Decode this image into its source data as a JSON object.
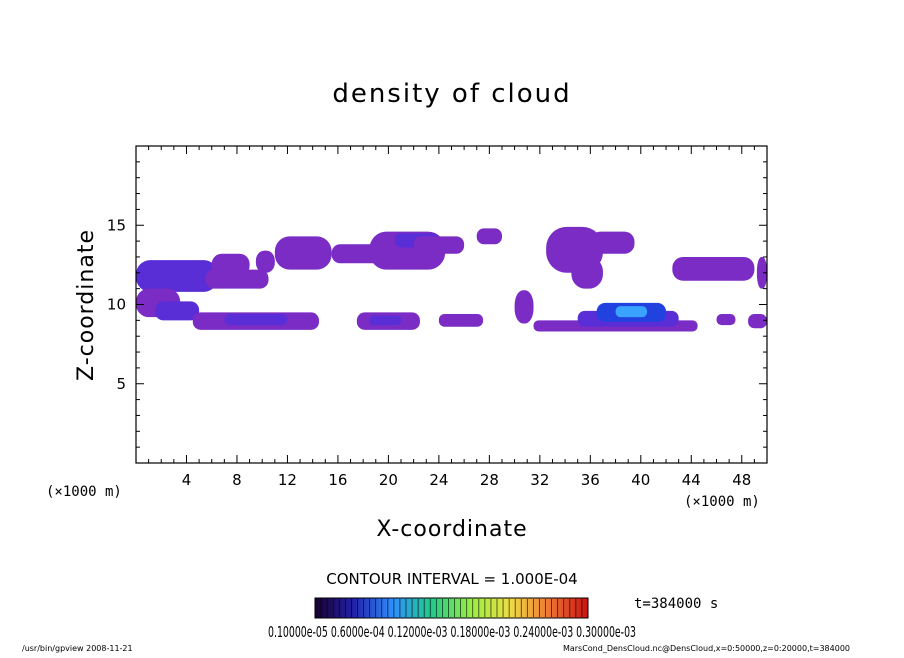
{
  "chart_data": {
    "type": "heatmap",
    "title": "density of cloud",
    "xlabel": "X-coordinate",
    "ylabel": "Z-coordinate",
    "x_unit_label": "(×1000 m)",
    "y_unit_label": "(×1000 m)",
    "xlim": [
      0,
      50
    ],
    "ylim": [
      0,
      20
    ],
    "x_ticks": [
      "4",
      "8",
      "12",
      "16",
      "20",
      "24",
      "28",
      "32",
      "36",
      "40",
      "44",
      "48"
    ],
    "y_ticks": [
      "5",
      "10",
      "15"
    ],
    "contour_interval_text": "CONTOUR INTERVAL = 1.000E-04",
    "time_text": "t=384000 s",
    "colorbar_labels_text": "0.10000e-05 0.6000e-04 0.12000e-03 0.18000e-03 0.24000e-03 0.30000e-03",
    "colorbar_stops": [
      "#1a0030",
      "#2222aa",
      "#2f8fff",
      "#22cc88",
      "#99ee44",
      "#eedd44",
      "#ee7733",
      "#cc1111"
    ],
    "cloud_levels": {
      "low": "#7b2cc4",
      "mid": "#5a2ed6",
      "high": "#2242e0",
      "peak": "#3aa3ff"
    },
    "regions": [
      {
        "x": [
          0.0,
          6.5
        ],
        "z": [
          10.8,
          12.8
        ],
        "level": "mid"
      },
      {
        "x": [
          0.0,
          3.5
        ],
        "z": [
          9.2,
          11.0
        ],
        "level": "low"
      },
      {
        "x": [
          1.5,
          5.0
        ],
        "z": [
          9.0,
          10.2
        ],
        "level": "mid"
      },
      {
        "x": [
          5.5,
          10.5
        ],
        "z": [
          11.0,
          12.2
        ],
        "level": "low"
      },
      {
        "x": [
          6.0,
          9.0
        ],
        "z": [
          11.8,
          13.2
        ],
        "level": "low"
      },
      {
        "x": [
          9.5,
          11.0
        ],
        "z": [
          12.0,
          13.4
        ],
        "level": "low"
      },
      {
        "x": [
          11.0,
          15.5
        ],
        "z": [
          12.2,
          14.3
        ],
        "level": "low"
      },
      {
        "x": [
          15.5,
          20.0
        ],
        "z": [
          12.6,
          13.8
        ],
        "level": "low"
      },
      {
        "x": [
          18.5,
          24.5
        ],
        "z": [
          12.2,
          14.6
        ],
        "level": "low"
      },
      {
        "x": [
          20.5,
          24.0
        ],
        "z": [
          13.6,
          14.5
        ],
        "level": "mid"
      },
      {
        "x": [
          22.0,
          26.0
        ],
        "z": [
          13.2,
          14.3
        ],
        "level": "low"
      },
      {
        "x": [
          27.0,
          29.0
        ],
        "z": [
          13.8,
          14.8
        ],
        "level": "low"
      },
      {
        "x": [
          4.5,
          14.5
        ],
        "z": [
          8.4,
          9.5
        ],
        "level": "low"
      },
      {
        "x": [
          7.0,
          12.0
        ],
        "z": [
          8.7,
          9.4
        ],
        "level": "mid"
      },
      {
        "x": [
          17.5,
          22.5
        ],
        "z": [
          8.4,
          9.5
        ],
        "level": "low"
      },
      {
        "x": [
          18.5,
          21.0
        ],
        "z": [
          8.7,
          9.3
        ],
        "level": "mid"
      },
      {
        "x": [
          24.0,
          27.5
        ],
        "z": [
          8.6,
          9.4
        ],
        "level": "low"
      },
      {
        "x": [
          30.0,
          31.5
        ],
        "z": [
          8.8,
          10.9
        ],
        "level": "low"
      },
      {
        "x": [
          32.5,
          37.0
        ],
        "z": [
          12.0,
          14.9
        ],
        "level": "low"
      },
      {
        "x": [
          34.5,
          37.0
        ],
        "z": [
          11.0,
          13.0
        ],
        "level": "low"
      },
      {
        "x": [
          36.0,
          39.5
        ],
        "z": [
          13.2,
          14.6
        ],
        "level": "low"
      },
      {
        "x": [
          31.5,
          44.5
        ],
        "z": [
          8.3,
          9.0
        ],
        "level": "low"
      },
      {
        "x": [
          35.0,
          43.0
        ],
        "z": [
          8.6,
          9.6
        ],
        "level": "mid"
      },
      {
        "x": [
          36.5,
          42.0
        ],
        "z": [
          8.9,
          10.1
        ],
        "level": "high"
      },
      {
        "x": [
          38.0,
          40.5
        ],
        "z": [
          9.2,
          9.9
        ],
        "level": "peak"
      },
      {
        "x": [
          42.5,
          49.0
        ],
        "z": [
          11.5,
          13.0
        ],
        "level": "low"
      },
      {
        "x": [
          49.2,
          50.0
        ],
        "z": [
          11.0,
          13.0
        ],
        "level": "low"
      },
      {
        "x": [
          46.0,
          47.5
        ],
        "z": [
          8.7,
          9.4
        ],
        "level": "low"
      },
      {
        "x": [
          48.5,
          50.0
        ],
        "z": [
          8.5,
          9.4
        ],
        "level": "low"
      }
    ]
  },
  "footer": {
    "left": "/usr/bin/gpview  2008-11-21",
    "right": "MarsCond_DensCloud.nc@DensCloud,x=0:50000,z=0:20000,t=384000"
  }
}
